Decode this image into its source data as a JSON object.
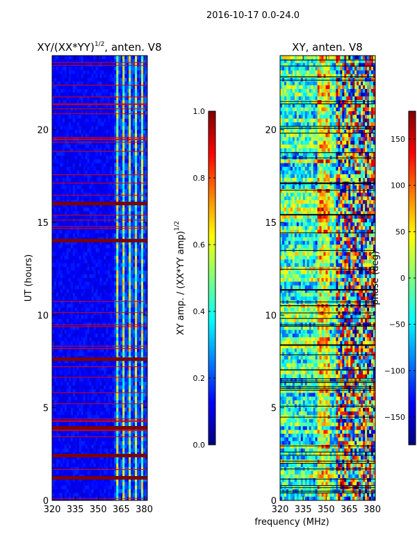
{
  "suptitle": "2016-10-17 0.0-24.0",
  "chart_data": [
    {
      "type": "heatmap",
      "title_main": "XY/(XX*YY)",
      "title_exp": "1/2",
      "title_tail": ", anten. V8",
      "xlabel": "",
      "ylabel": "UT (hours)",
      "xlim": [
        320,
        382
      ],
      "ylim": [
        0,
        24
      ],
      "x_ticks": [
        320,
        335,
        350,
        365,
        380
      ],
      "y_ticks": [
        0,
        5,
        10,
        15,
        20
      ],
      "colorbar": {
        "label_main": "XY amp. / (XX*YY amp)",
        "label_exp": "1/2",
        "range": [
          0.0,
          1.0
        ],
        "ticks": [
          "0.0",
          "0.2",
          "0.4",
          "0.6",
          "0.8",
          "1.0"
        ],
        "tick_values": [
          0.0,
          0.2,
          0.4,
          0.6,
          0.8,
          1.0
        ]
      },
      "bright_bands_ut": [
        1.2,
        2.4,
        3.9,
        7.6,
        14.0,
        16.0
      ],
      "active_freq_range": [
        360,
        382
      ]
    },
    {
      "type": "heatmap",
      "title_main": "XY, anten. V8",
      "xlabel": "frequency (MHz)",
      "ylabel": "",
      "xlim": [
        320,
        382
      ],
      "ylim": [
        0,
        24
      ],
      "x_ticks": [
        320,
        335,
        350,
        365,
        380
      ],
      "y_ticks": [
        0,
        5,
        10,
        15,
        20
      ],
      "colorbar": {
        "label_main": "phase (deg)",
        "range": [
          -180,
          180
        ],
        "ticks": [
          "150",
          "100",
          "50",
          "0",
          "−50",
          "−100",
          "−150"
        ],
        "tick_values": [
          150,
          100,
          50,
          0,
          -50,
          -100,
          -150
        ]
      }
    }
  ]
}
